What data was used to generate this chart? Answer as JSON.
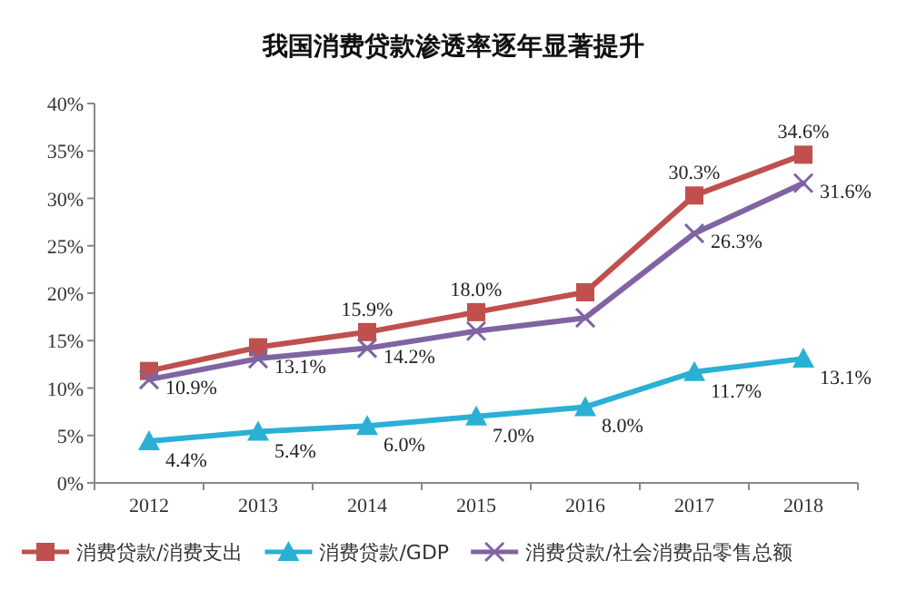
{
  "chart_data": {
    "type": "line",
    "title": "我国消费贷款渗透率逐年显著提升",
    "categories": [
      "2012",
      "2013",
      "2014",
      "2015",
      "2016",
      "2017",
      "2018"
    ],
    "series": [
      {
        "name": "消费贷款/消费支出",
        "color": "#c0504d",
        "marker": "square",
        "values": [
          11.8,
          14.3,
          15.9,
          18.0,
          20.1,
          30.3,
          34.6
        ],
        "value_labels": [
          null,
          null,
          "15.9%",
          "18.0%",
          null,
          "30.3%",
          "34.6%"
        ]
      },
      {
        "name": "消费贷款/GDP",
        "color": "#2ab0d4",
        "marker": "triangle",
        "values": [
          4.4,
          5.4,
          6.0,
          7.0,
          8.0,
          11.7,
          13.1
        ],
        "value_labels": [
          "4.4%",
          "5.4%",
          "6.0%",
          "7.0%",
          "8.0%",
          "11.7%",
          "13.1%"
        ]
      },
      {
        "name": "消费贷款/社会消费品零售总额",
        "color": "#8064a2",
        "marker": "cross",
        "values": [
          10.9,
          13.1,
          14.2,
          16.0,
          17.4,
          26.3,
          31.6
        ],
        "value_labels": [
          "10.9%",
          "13.1%",
          "14.2%",
          null,
          null,
          "26.3%",
          "31.6%"
        ]
      }
    ],
    "ylim": [
      0,
      40
    ],
    "yticks": [
      {
        "value": 0,
        "label": "0%"
      },
      {
        "value": 5,
        "label": "5%"
      },
      {
        "value": 10,
        "label": "10%"
      },
      {
        "value": 15,
        "label": "15%"
      },
      {
        "value": 20,
        "label": "20%"
      },
      {
        "value": 25,
        "label": "25%"
      },
      {
        "value": 30,
        "label": "30%"
      },
      {
        "value": 35,
        "label": "35%"
      },
      {
        "value": 40,
        "label": "40%"
      }
    ],
    "grid": false,
    "legend": "bottom"
  }
}
